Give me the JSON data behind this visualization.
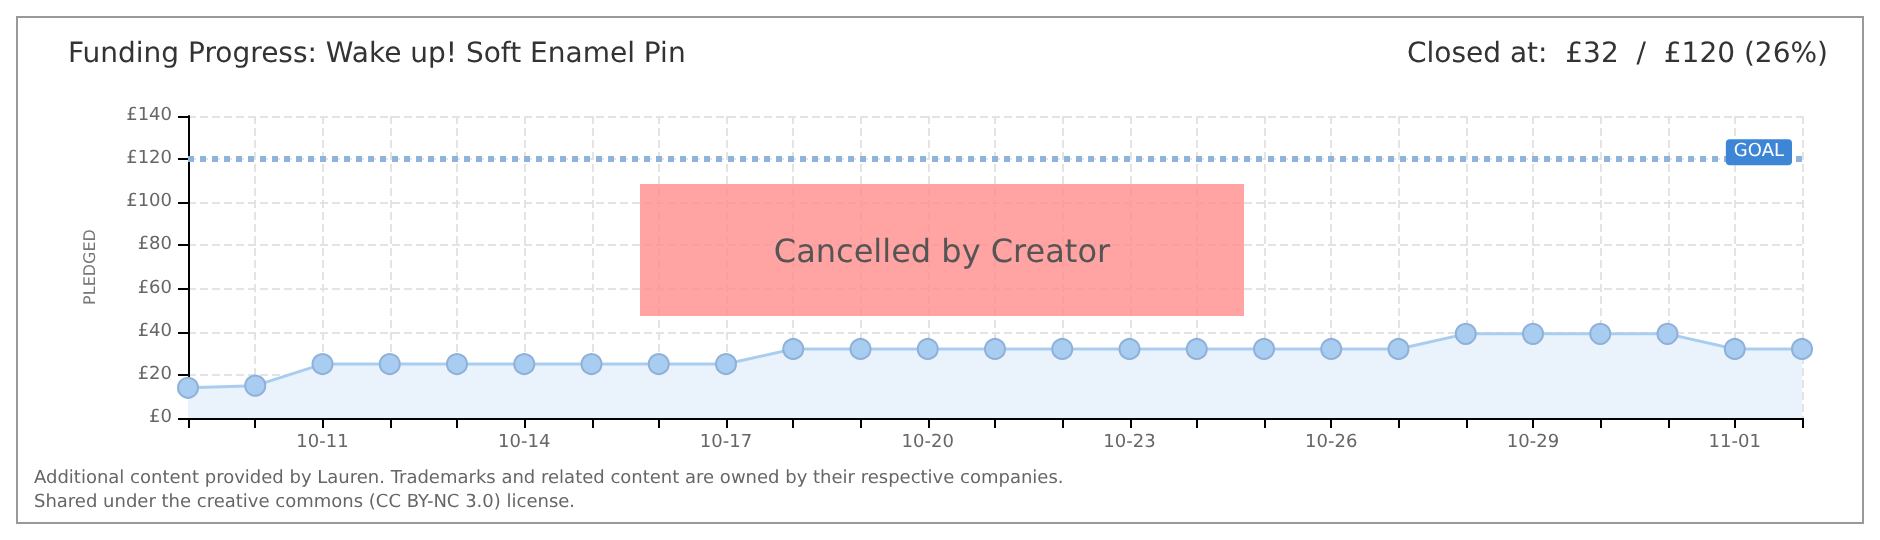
{
  "chart_data": {
    "type": "area",
    "title": "Funding Progress: Wake up! Soft Enamel Pin",
    "subtitle": "Closed at:  £32  /  £120 (26%)",
    "ylabel": "PLEDGED",
    "categories": [
      null,
      null,
      "10-11",
      null,
      null,
      "10-14",
      null,
      null,
      "10-17",
      null,
      null,
      "10-20",
      null,
      null,
      "10-23",
      null,
      null,
      "10-26",
      null,
      null,
      "10-29",
      null,
      null,
      "11-01",
      null
    ],
    "series": [
      {
        "color": "#a9cdf0",
        "values": [
          14,
          15,
          25,
          25,
          25,
          25,
          25,
          25,
          25,
          32,
          32,
          32,
          32,
          32,
          32,
          32,
          32,
          32,
          32,
          39,
          39,
          39,
          39,
          32,
          32
        ]
      }
    ],
    "ylim": [
      0,
      140
    ],
    "yticks": [
      {
        "value": 0,
        "label": "£0"
      },
      {
        "value": 20,
        "label": "£20"
      },
      {
        "value": 40,
        "label": "£40"
      },
      {
        "value": 60,
        "label": "£60"
      },
      {
        "value": 80,
        "label": "£80"
      },
      {
        "value": 100,
        "label": "£100"
      },
      {
        "value": 120,
        "label": "£120"
      },
      {
        "value": 140,
        "label": "£140"
      }
    ],
    "ref_lines": [
      {
        "axis": "y",
        "value": 120,
        "label": "GOAL",
        "color": "#8fb4dc",
        "line_style": "dotted"
      }
    ],
    "annotations": [
      "Cancelled by Creator",
      "Additional content provided by Lauren. Trademarks and related content are owned by their respective companies.",
      "Shared under the creative commons (CC BY-NC 3.0) license."
    ],
    "grid": true,
    "marker": "circle",
    "line_style": "solid"
  }
}
